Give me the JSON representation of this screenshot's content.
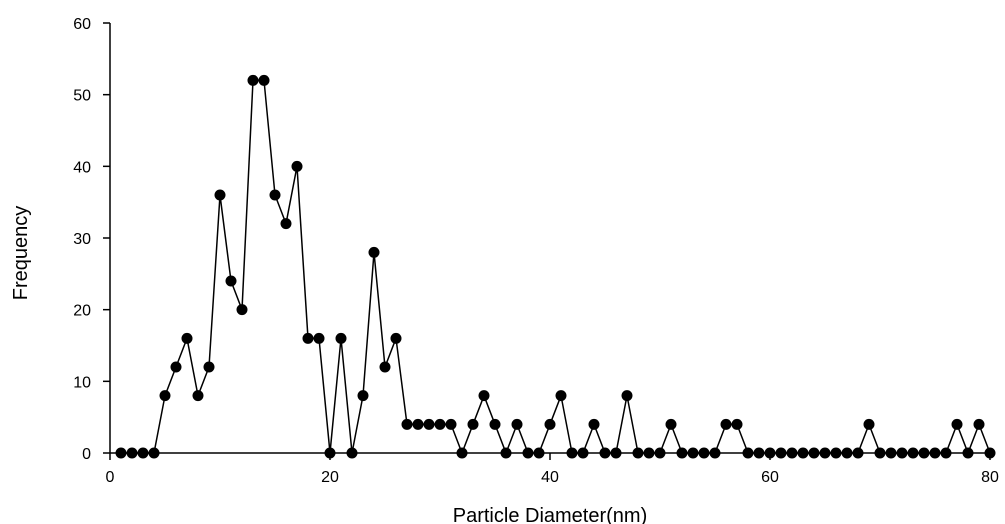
{
  "chart_data": {
    "type": "line",
    "title": "",
    "xlabel": "Particle Diameter(nm)",
    "ylabel": "Frequency",
    "xlim": [
      0,
      80
    ],
    "ylim": [
      0,
      60
    ],
    "xticks": [
      0,
      20,
      40,
      60,
      80
    ],
    "yticks": [
      0,
      10,
      20,
      30,
      40,
      50,
      60
    ],
    "grid": false,
    "legend": "none",
    "marker": "circle",
    "color": "#000000",
    "series": [
      {
        "x": [
          1,
          2,
          3,
          4,
          5,
          6,
          7,
          8,
          9,
          10,
          11,
          12,
          13,
          14,
          15,
          16,
          17,
          18,
          19,
          20,
          21,
          22,
          23,
          24,
          25,
          26,
          27,
          28,
          29,
          30,
          31,
          32,
          33,
          34,
          35,
          36,
          37,
          38,
          39,
          40,
          41,
          42,
          43,
          44,
          45,
          46,
          47,
          48,
          49,
          50,
          51,
          52,
          53,
          54,
          55,
          56,
          57,
          58,
          59,
          60,
          61,
          62,
          63,
          64,
          65,
          66,
          67,
          68,
          69,
          70,
          71,
          72,
          73,
          74,
          75,
          76,
          77,
          78,
          79,
          80
        ],
        "values": [
          0,
          0,
          0,
          0,
          8,
          12,
          16,
          8,
          12,
          36,
          24,
          20,
          52,
          52,
          36,
          32,
          40,
          16,
          16,
          0,
          16,
          0,
          8,
          28,
          12,
          16,
          4,
          4,
          4,
          4,
          4,
          0,
          4,
          8,
          4,
          0,
          4,
          0,
          0,
          4,
          8,
          0,
          0,
          4,
          0,
          0,
          8,
          0,
          0,
          0,
          4,
          0,
          0,
          0,
          0,
          4,
          4,
          0,
          0,
          0,
          0,
          0,
          0,
          0,
          0,
          0,
          0,
          0,
          4,
          0,
          0,
          0,
          0,
          0,
          0,
          0,
          4,
          0,
          4,
          0
        ]
      }
    ]
  }
}
